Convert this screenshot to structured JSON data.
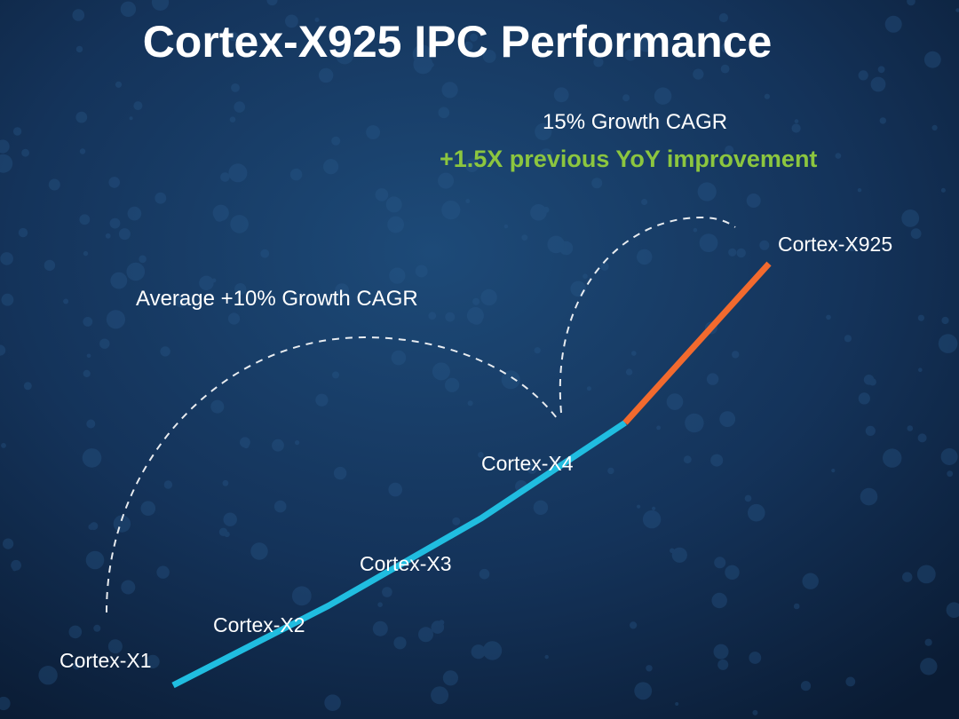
{
  "chart_data": {
    "type": "line",
    "title": "Cortex-X925 IPC Performance",
    "xlabel": "",
    "ylabel": "",
    "categories": [
      "Cortex-X1",
      "Cortex-X2",
      "Cortex-X3",
      "Cortex-X4",
      "Cortex-X925"
    ],
    "values": [
      100,
      110,
      121,
      133,
      153
    ],
    "ylim": [
      100,
      153
    ],
    "segments": [
      {
        "from": "Cortex-X1",
        "to": "Cortex-X4",
        "color": "#20bde0"
      },
      {
        "from": "Cortex-X4",
        "to": "Cortex-X925",
        "color": "#f26a2e"
      }
    ],
    "annotations": [
      {
        "text": "Average +10% Growth CAGR",
        "color": "#ffffff"
      },
      {
        "text": "15% Growth CAGR",
        "color": "#ffffff"
      },
      {
        "text": "+1.5X previous YoY improvement",
        "color": "#8cc63f"
      }
    ],
    "grid": false,
    "legend": "none"
  },
  "colors": {
    "background": "#0f2443",
    "line_primary": "#20bde0",
    "line_highlight": "#f26a2e",
    "accent_text": "#8cc63f"
  }
}
